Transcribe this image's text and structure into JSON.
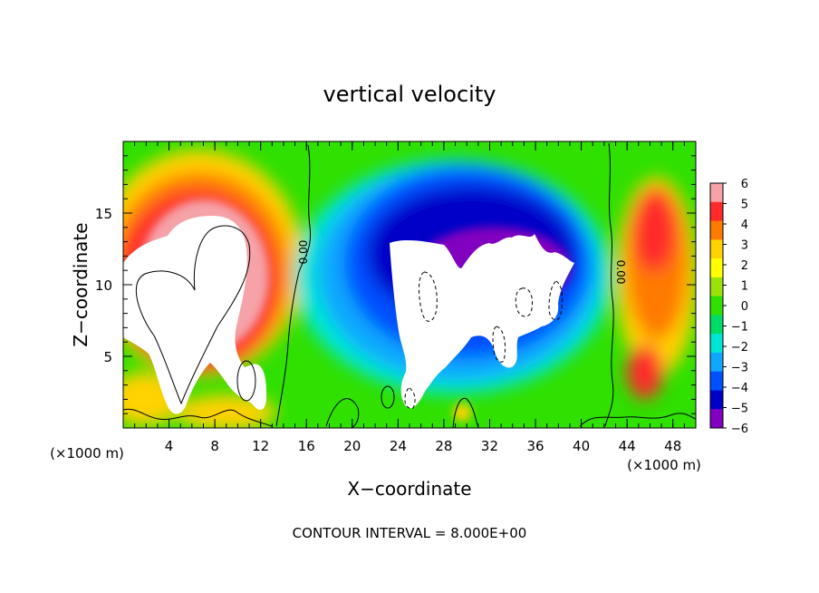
{
  "chart_data": {
    "type": "heatmap",
    "title": "vertical velocity",
    "xlabel": "X−coordinate",
    "ylabel": "Z−coordinate",
    "x_unit_label_left": "(×1000 m)",
    "x_unit_label_right": "(×1000 m)",
    "footer": "CONTOUR INTERVAL = 8.000E+00",
    "xlim": [
      0,
      50
    ],
    "ylim": [
      0,
      20
    ],
    "x_ticks": [
      4,
      8,
      12,
      16,
      20,
      24,
      28,
      32,
      36,
      40,
      44,
      48
    ],
    "y_ticks": [
      5,
      10,
      15
    ],
    "colorbar": {
      "ticks": [
        "6",
        "5",
        "4",
        "3",
        "2",
        "1",
        "0",
        "−1",
        "−2",
        "−3",
        "−4",
        "−5",
        "−6"
      ],
      "range": [
        -6,
        6
      ],
      "colors": [
        "#f5a3a8",
        "#ff2a2a",
        "#ff7a00",
        "#ffd200",
        "#ffff00",
        "#9be10a",
        "#2fe000",
        "#00dd66",
        "#00e6d6",
        "#10a8ff",
        "#0050ff",
        "#0000c8",
        "#8200c0"
      ]
    },
    "contour_labels": [
      "0.00",
      "0.00"
    ],
    "clipped_color_above": "#ffffff",
    "clipped_color_below": "#ffffff"
  }
}
